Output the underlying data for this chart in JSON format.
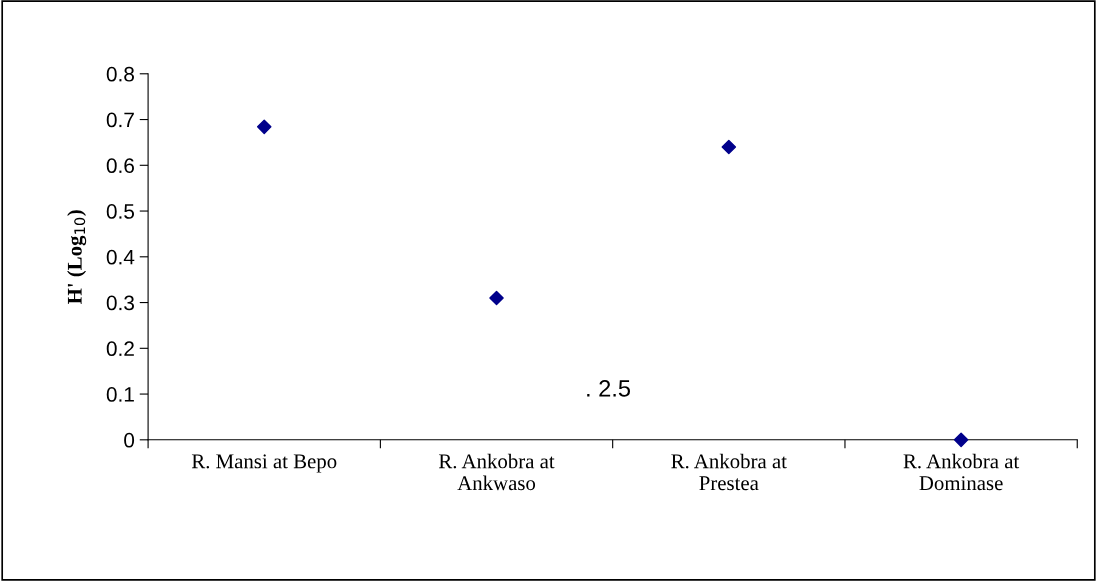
{
  "chart_data": {
    "type": "scatter",
    "ylabel": "H' (Log$_{10}$)",
    "categories": [
      "R. Mansi at Bepo",
      "R. Ankobra at\nAnkwaso",
      "R. Ankobra at\nPrestea",
      "R. Ankobra at\nDominase"
    ],
    "series": [
      {
        "color": "#00008b",
        "values": [
          0.684,
          0.31,
          0.64,
          0
        ]
      }
    ],
    "marker": "diamond",
    "ylim": [
      0,
      0.8
    ],
    "yticks": [
      0,
      0.1,
      0.2,
      0.3,
      0.4,
      0.5,
      0.6,
      0.7,
      0.8
    ],
    "grid": false,
    "legend": false,
    "annotations": [
      ". 2.5"
    ]
  }
}
